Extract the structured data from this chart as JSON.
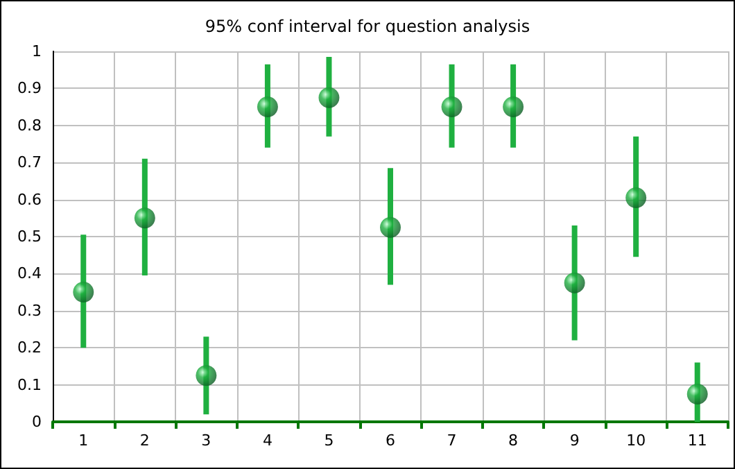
{
  "chart_data": {
    "type": "scatter",
    "title": "95% conf interval for question analysis",
    "categories": [
      "1",
      "2",
      "3",
      "4",
      "5",
      "6",
      "7",
      "8",
      "9",
      "10",
      "11"
    ],
    "series": [
      {
        "color": "#1fb040",
        "values": [
          0.35,
          0.55,
          0.125,
          0.85,
          0.875,
          0.525,
          0.85,
          0.85,
          0.375,
          0.605,
          0.075
        ],
        "errors": [
          [
            0.2,
            0.505
          ],
          [
            0.395,
            0.71
          ],
          [
            0.02,
            0.23
          ],
          [
            0.74,
            0.965
          ],
          [
            0.77,
            0.985
          ],
          [
            0.37,
            0.685
          ],
          [
            0.74,
            0.965
          ],
          [
            0.74,
            0.965
          ],
          [
            0.22,
            0.53
          ],
          [
            0.445,
            0.77
          ],
          [
            0,
            0.16
          ]
        ]
      }
    ],
    "ylim": [
      0,
      1
    ],
    "yticks": [
      0,
      0.1,
      0.2,
      0.3,
      0.4,
      0.5,
      0.6,
      0.7,
      0.8,
      0.9,
      1
    ],
    "grid": true,
    "marker": "circle"
  }
}
